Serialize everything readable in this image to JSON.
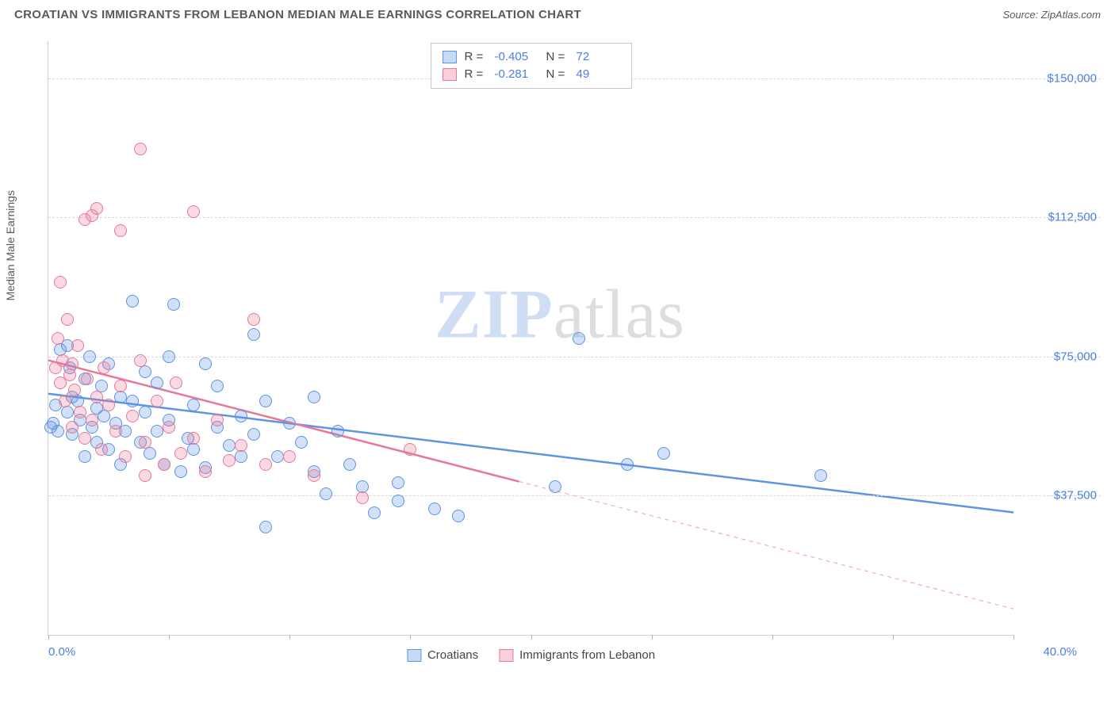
{
  "header": {
    "title": "CROATIAN VS IMMIGRANTS FROM LEBANON MEDIAN MALE EARNINGS CORRELATION CHART",
    "source_prefix": "Source: ",
    "source_site": "ZipAtlas.com"
  },
  "watermark": {
    "zip": "ZIP",
    "atlas": "atlas"
  },
  "chart": {
    "type": "scatter",
    "ylabel": "Median Male Earnings",
    "xlim": [
      0,
      40
    ],
    "ylim": [
      0,
      160000
    ],
    "y_gridlines": [
      37500,
      75000,
      112500,
      150000
    ],
    "y_gridlabels": [
      "$37,500",
      "$75,000",
      "$112,500",
      "$150,000"
    ],
    "x_ticks_pct": [
      0,
      5,
      10,
      15,
      20,
      25,
      30,
      35,
      40
    ],
    "xlabel_min": "0.0%",
    "xlabel_max": "40.0%",
    "plot_bg": "#ffffff",
    "grid_color": "#d8d8d8",
    "axis_color": "#cfcfcf",
    "point_radius": 8,
    "series": [
      {
        "key": "croatians",
        "label": "Croatians",
        "color": "#5d94e3",
        "fill": "rgba(93,148,227,0.28)",
        "R": "-0.405",
        "N": "72",
        "trend_y_at_x0": 65000,
        "trend_y_at_x40": 33000,
        "trend_solid_x_max": 40,
        "points": [
          [
            0.2,
            57000
          ],
          [
            0.3,
            62000
          ],
          [
            0.5,
            77000
          ],
          [
            0.4,
            55000
          ],
          [
            0.8,
            78000
          ],
          [
            0.8,
            60000
          ],
          [
            0.9,
            72000
          ],
          [
            1.0,
            64000
          ],
          [
            1.0,
            54000
          ],
          [
            1.2,
            63000
          ],
          [
            1.3,
            58000
          ],
          [
            1.5,
            69000
          ],
          [
            1.5,
            48000
          ],
          [
            1.7,
            75000
          ],
          [
            1.8,
            56000
          ],
          [
            2.0,
            61000
          ],
          [
            2.0,
            52000
          ],
          [
            2.2,
            67000
          ],
          [
            2.3,
            59000
          ],
          [
            2.5,
            73000
          ],
          [
            2.5,
            50000
          ],
          [
            2.8,
            57000
          ],
          [
            3.0,
            64000
          ],
          [
            3.0,
            46000
          ],
          [
            3.2,
            55000
          ],
          [
            3.5,
            63000
          ],
          [
            3.5,
            90000
          ],
          [
            3.8,
            52000
          ],
          [
            4.0,
            60000
          ],
          [
            4.0,
            71000
          ],
          [
            4.2,
            49000
          ],
          [
            4.5,
            68000
          ],
          [
            4.5,
            55000
          ],
          [
            4.8,
            46000
          ],
          [
            5.0,
            58000
          ],
          [
            5.0,
            75000
          ],
          [
            5.2,
            89000
          ],
          [
            5.5,
            44000
          ],
          [
            5.8,
            53000
          ],
          [
            6.0,
            62000
          ],
          [
            6.0,
            50000
          ],
          [
            6.5,
            73000
          ],
          [
            6.5,
            45000
          ],
          [
            7.0,
            56000
          ],
          [
            7.0,
            67000
          ],
          [
            7.5,
            51000
          ],
          [
            8.0,
            59000
          ],
          [
            8.0,
            48000
          ],
          [
            8.5,
            81000
          ],
          [
            8.5,
            54000
          ],
          [
            9.0,
            29000
          ],
          [
            9.0,
            63000
          ],
          [
            9.5,
            48000
          ],
          [
            10.0,
            57000
          ],
          [
            10.5,
            52000
          ],
          [
            11.0,
            64000
          ],
          [
            11.0,
            44000
          ],
          [
            11.5,
            38000
          ],
          [
            12.0,
            55000
          ],
          [
            12.5,
            46000
          ],
          [
            13.0,
            40000
          ],
          [
            13.5,
            33000
          ],
          [
            14.5,
            36000
          ],
          [
            14.5,
            41000
          ],
          [
            16.0,
            34000
          ],
          [
            17.0,
            32000
          ],
          [
            21.0,
            40000
          ],
          [
            22.0,
            80000
          ],
          [
            24.0,
            46000
          ],
          [
            25.5,
            49000
          ],
          [
            32.0,
            43000
          ],
          [
            0.1,
            56000
          ]
        ]
      },
      {
        "key": "lebanon",
        "label": "Immigrants from Lebanon",
        "color": "#e97896",
        "fill": "rgba(233,120,150,0.28)",
        "R": "-0.281",
        "N": "49",
        "trend_y_at_x0": 74000,
        "trend_y_at_x40": 7000,
        "trend_solid_x_max": 19.5,
        "points": [
          [
            0.3,
            72000
          ],
          [
            0.4,
            80000
          ],
          [
            0.5,
            68000
          ],
          [
            0.5,
            95000
          ],
          [
            0.6,
            74000
          ],
          [
            0.7,
            63000
          ],
          [
            0.8,
            85000
          ],
          [
            0.9,
            70000
          ],
          [
            1.0,
            56000
          ],
          [
            1.0,
            73000
          ],
          [
            1.1,
            66000
          ],
          [
            1.2,
            78000
          ],
          [
            1.3,
            60000
          ],
          [
            1.5,
            53000
          ],
          [
            1.5,
            112000
          ],
          [
            1.6,
            69000
          ],
          [
            1.8,
            58000
          ],
          [
            1.8,
            113000
          ],
          [
            2.0,
            115000
          ],
          [
            2.0,
            64000
          ],
          [
            2.2,
            50000
          ],
          [
            2.3,
            72000
          ],
          [
            2.5,
            62000
          ],
          [
            2.8,
            55000
          ],
          [
            3.0,
            109000
          ],
          [
            3.0,
            67000
          ],
          [
            3.2,
            48000
          ],
          [
            3.5,
            59000
          ],
          [
            3.8,
            74000
          ],
          [
            3.8,
            131000
          ],
          [
            4.0,
            52000
          ],
          [
            4.0,
            43000
          ],
          [
            4.5,
            63000
          ],
          [
            4.8,
            46000
          ],
          [
            5.0,
            56000
          ],
          [
            5.3,
            68000
          ],
          [
            5.5,
            49000
          ],
          [
            6.0,
            114000
          ],
          [
            6.0,
            53000
          ],
          [
            6.5,
            44000
          ],
          [
            7.0,
            58000
          ],
          [
            7.5,
            47000
          ],
          [
            8.0,
            51000
          ],
          [
            8.5,
            85000
          ],
          [
            9.0,
            46000
          ],
          [
            10.0,
            48000
          ],
          [
            11.0,
            43000
          ],
          [
            13.0,
            37000
          ],
          [
            15.0,
            50000
          ]
        ]
      }
    ]
  },
  "legend_top": {
    "R_label": "R =",
    "N_label": "N ="
  }
}
